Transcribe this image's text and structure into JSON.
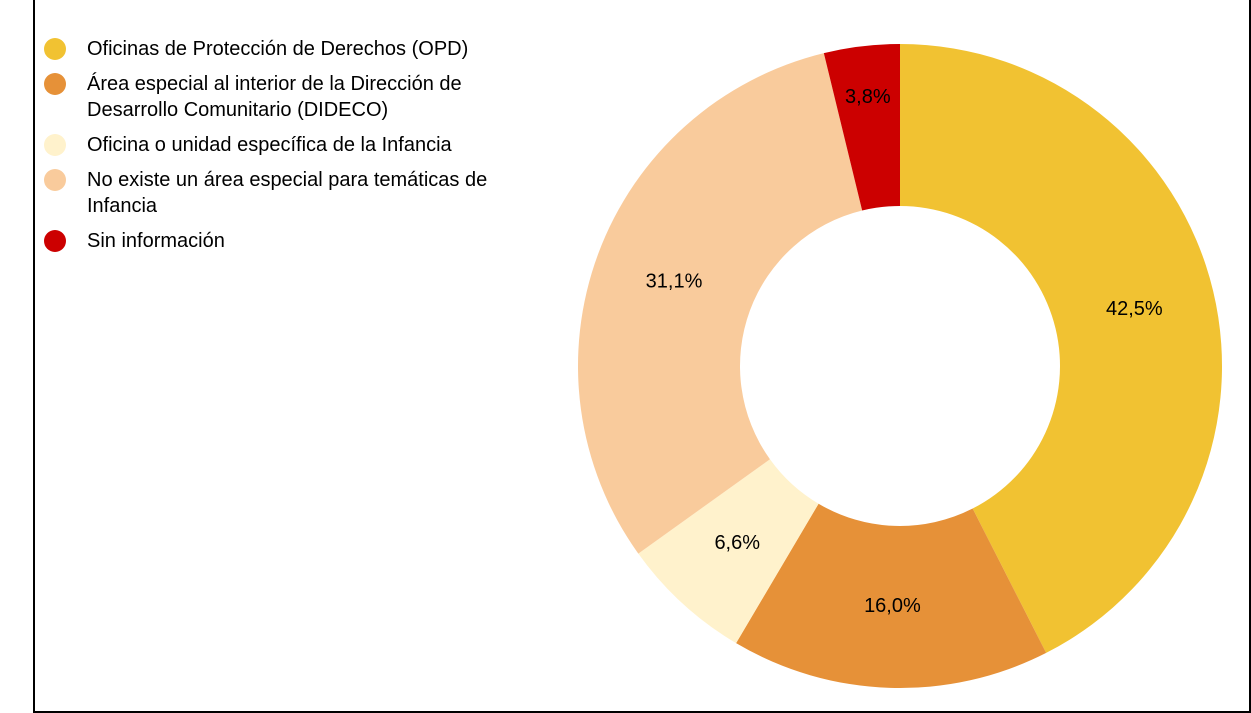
{
  "chart_data": {
    "type": "donut",
    "categories": [
      "Oficinas de Protección de Derechos (OPD)",
      "Área especial al interior de la Dirección de Desarrollo Comunitario (DIDECO)",
      "Oficina o unidad específica de la Infancia",
      "No existe un área especial para temáticas de Infancia",
      "Sin información"
    ],
    "values": [
      42.5,
      16.0,
      6.6,
      31.1,
      3.8
    ],
    "value_labels": [
      "42,5%",
      "16,0%",
      "6,6%",
      "31,1%",
      "3,8%"
    ],
    "colors": [
      "#f1c232",
      "#e69138",
      "#fff2cc",
      "#f9cb9c",
      "#cc0000"
    ],
    "legend": "left"
  }
}
